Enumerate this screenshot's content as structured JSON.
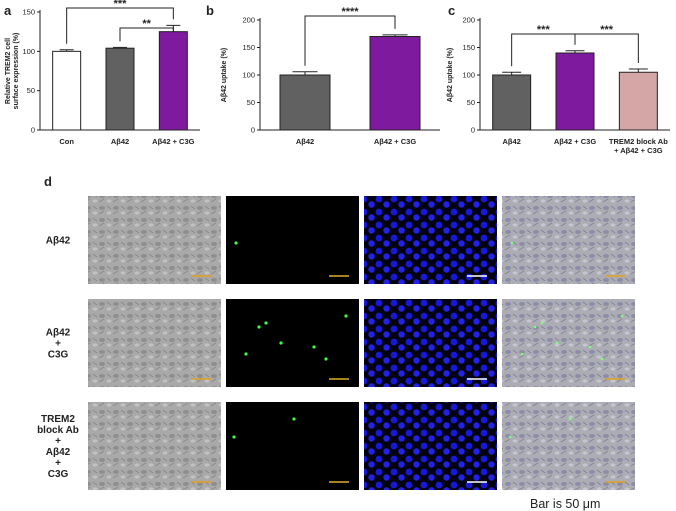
{
  "panel_labels": [
    "a",
    "b",
    "c",
    "d"
  ],
  "chart_data": [
    {
      "type": "bar",
      "panel": "a",
      "categories": [
        "Con",
        "Aβ42",
        "Aβ42 + C3G"
      ],
      "values": [
        100,
        104,
        125
      ],
      "errors": [
        2,
        1,
        8
      ],
      "bar_colors": [
        "#ffffff",
        "#616161",
        "#7d1a9e"
      ],
      "ylabel": "Relative TREM2 cell surface expression (%)",
      "ylabel_lines": [
        "Relative TREM2 cell",
        "surface expression (%)"
      ],
      "ylim": [
        0,
        150
      ],
      "yticks": [
        0,
        50,
        100,
        150
      ],
      "significance": [
        {
          "from": 0,
          "to": 2,
          "label": "***"
        },
        {
          "from": 1,
          "to": 2,
          "label": "**"
        }
      ]
    },
    {
      "type": "bar",
      "panel": "b",
      "categories": [
        "Aβ42",
        "Aβ42 + C3G"
      ],
      "values": [
        100,
        170
      ],
      "errors": [
        6,
        3
      ],
      "bar_colors": [
        "#616161",
        "#7d1a9e"
      ],
      "ylabel": "Aβ42 uptake (%)",
      "ylim": [
        0,
        200
      ],
      "yticks": [
        0,
        50,
        100,
        150,
        200
      ],
      "significance": [
        {
          "from": 0,
          "to": 1,
          "label": "****"
        }
      ]
    },
    {
      "type": "bar",
      "panel": "c",
      "categories": [
        "Aβ42",
        "Aβ42 + C3G",
        "TREM2 block Ab + Aβ42 + C3G"
      ],
      "category_lines": [
        [
          "Aβ42"
        ],
        [
          "Aβ42 + C3G"
        ],
        [
          "TREM2 block Ab",
          "+ Aβ42 + C3G"
        ]
      ],
      "values": [
        100,
        140,
        105
      ],
      "errors": [
        5,
        4,
        6
      ],
      "bar_colors": [
        "#616161",
        "#7d1a9e",
        "#d4a6a6"
      ],
      "ylabel": "Aβ42 uptake (%)",
      "ylim": [
        0,
        200
      ],
      "yticks": [
        0,
        50,
        100,
        150,
        200
      ],
      "significance": [
        {
          "from": 0,
          "to": 1,
          "label": "***"
        },
        {
          "from": 1,
          "to": 2,
          "label": "***"
        }
      ]
    }
  ],
  "micrographs": {
    "rows": [
      {
        "label_lines": [
          "Aβ42"
        ]
      },
      {
        "label_lines": [
          "Aβ42",
          "+",
          "C3G"
        ]
      },
      {
        "label_lines": [
          "TREM2",
          "block Ab",
          "+",
          "Aβ42",
          "+",
          "C3G"
        ]
      }
    ],
    "columns": [
      "brightfield",
      "green-fluorescence",
      "blue-nuclei",
      "merged"
    ],
    "column_colors": [
      "#a8a8a8",
      "#000000",
      "#000000",
      "#aaaab4"
    ],
    "scalebar_colors": [
      "#e0a020",
      "#e0b020",
      "#ffffff",
      "#e0a020"
    ],
    "footnote": "Bar is 50 μm"
  }
}
